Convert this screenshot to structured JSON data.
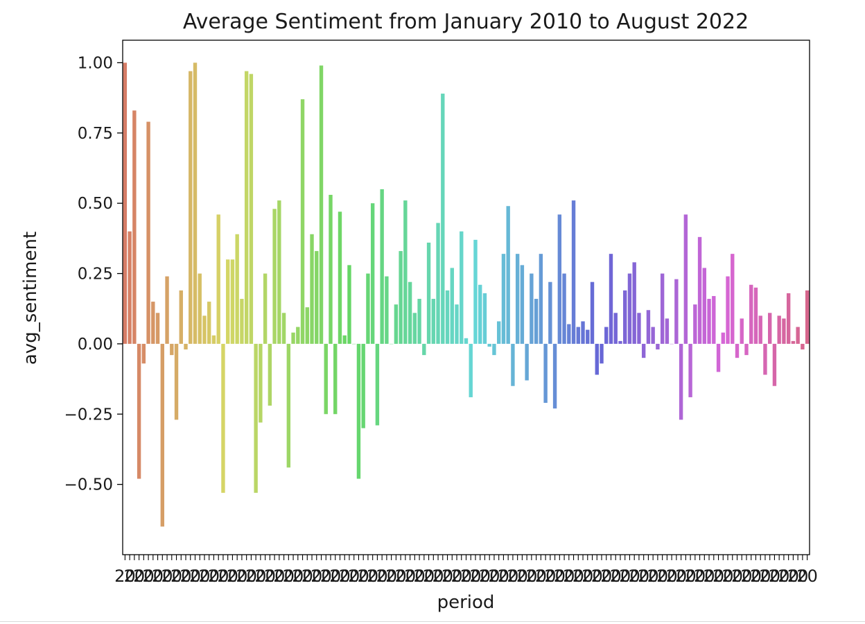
{
  "chart_data": {
    "type": "bar",
    "title": "Average Sentiment from January 2010 to August 2022",
    "xlabel": "period",
    "ylabel": "avg_sentiment",
    "ylim": [
      -0.75,
      1.08
    ],
    "yticks": [
      -0.5,
      -0.25,
      0.0,
      0.25,
      0.5,
      0.75,
      1.0
    ],
    "ytick_labels": [
      "−0.50",
      "−0.25",
      "0.00",
      "0.25",
      "0.50",
      "0.75",
      "1.00"
    ],
    "x_tick_labels_visible": "illegible overlapping period labels (e.g. 2010-01 ... 2022-08)",
    "grid": false,
    "legend": "none",
    "palette": "husl gradient (salmon → orange → olive → green → teal → blue → purple → pink)",
    "values": [
      1.0,
      0.4,
      0.83,
      -0.48,
      -0.07,
      0.79,
      0.15,
      0.11,
      -0.65,
      0.24,
      -0.04,
      -0.27,
      0.19,
      -0.02,
      0.97,
      1.0,
      0.25,
      0.1,
      0.15,
      0.03,
      0.46,
      -0.53,
      0.3,
      0.3,
      0.39,
      0.16,
      0.97,
      0.96,
      -0.53,
      -0.28,
      0.25,
      -0.22,
      0.48,
      0.51,
      0.11,
      -0.44,
      0.04,
      0.06,
      0.87,
      0.13,
      0.39,
      0.33,
      0.99,
      -0.25,
      0.53,
      -0.25,
      0.47,
      0.03,
      0.28,
      0.0,
      -0.48,
      -0.3,
      0.25,
      0.5,
      -0.29,
      0.55,
      0.24,
      0.0,
      0.14,
      0.33,
      0.51,
      0.22,
      0.11,
      0.16,
      -0.04,
      0.36,
      0.16,
      0.43,
      0.89,
      0.19,
      0.27,
      0.14,
      0.4,
      0.02,
      -0.19,
      0.37,
      0.21,
      0.18,
      -0.01,
      -0.04,
      0.08,
      0.32,
      0.49,
      -0.15,
      0.32,
      0.28,
      -0.13,
      0.25,
      0.16,
      0.32,
      -0.21,
      0.22,
      -0.23,
      0.46,
      0.25,
      0.07,
      0.51,
      0.06,
      0.08,
      0.05,
      0.22,
      -0.11,
      -0.07,
      0.06,
      0.32,
      0.11,
      0.01,
      0.19,
      0.25,
      0.29,
      0.11,
      -0.05,
      0.12,
      0.06,
      -0.02,
      0.25,
      0.09,
      0.0,
      0.23,
      -0.27,
      0.46,
      -0.19,
      0.14,
      0.38,
      0.27,
      0.16,
      0.17,
      -0.1,
      0.04,
      0.24,
      0.32,
      -0.05,
      0.09,
      -0.04,
      0.21,
      0.2,
      0.1,
      -0.11,
      0.11,
      -0.15,
      0.1,
      0.09,
      0.18,
      0.01,
      0.06,
      -0.02,
      0.19
    ]
  }
}
